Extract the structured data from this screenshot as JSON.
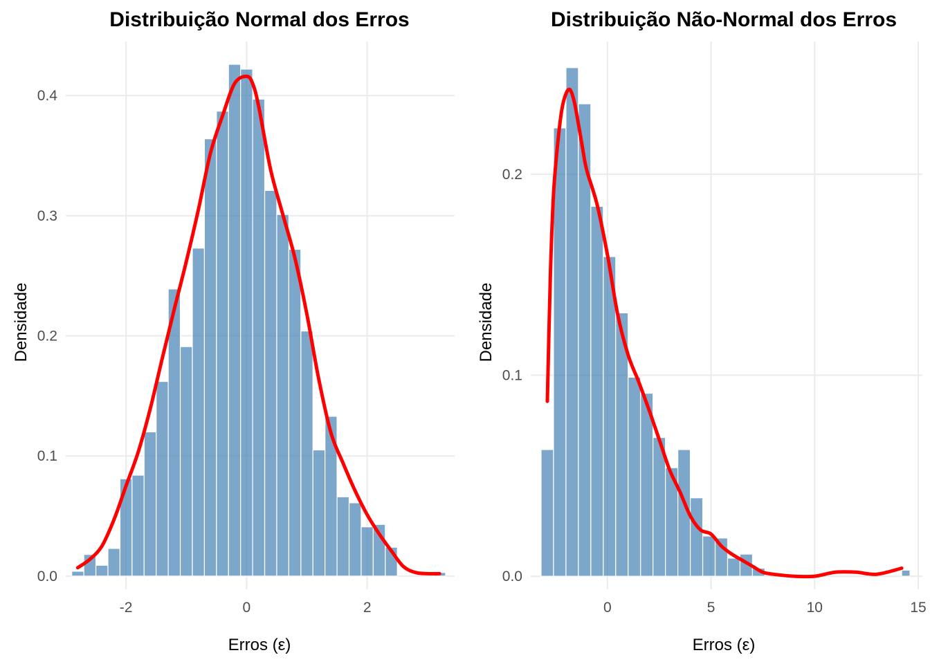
{
  "chart_data": [
    {
      "type": "bar",
      "subtype": "histogram-with-density",
      "title": "Distribuição Normal dos Erros",
      "xlabel": "Erros (ε)",
      "ylabel": "Densidade",
      "xlim": [
        -3.0,
        3.45
      ],
      "ylim": [
        -0.011,
        0.445
      ],
      "xticks": [
        -2,
        0,
        2
      ],
      "xtick_labels": [
        "-2",
        "0",
        "2"
      ],
      "yticks": [
        0.0,
        0.1,
        0.2,
        0.3,
        0.4
      ],
      "ytick_labels": [
        "0.0",
        "0.1",
        "0.2",
        "0.3",
        "0.4"
      ],
      "grid": true,
      "bar_color": "#4682b4",
      "line_color": "#ff0000",
      "bins": [
        {
          "x0": -2.9,
          "x1": -2.7,
          "density": 0.004
        },
        {
          "x0": -2.7,
          "x1": -2.5,
          "density": 0.018
        },
        {
          "x0": -2.5,
          "x1": -2.3,
          "density": 0.009
        },
        {
          "x0": -2.3,
          "x1": -2.1,
          "density": 0.023
        },
        {
          "x0": -2.1,
          "x1": -1.9,
          "density": 0.081
        },
        {
          "x0": -1.9,
          "x1": -1.7,
          "density": 0.084
        },
        {
          "x0": -1.7,
          "x1": -1.5,
          "density": 0.12
        },
        {
          "x0": -1.5,
          "x1": -1.3,
          "density": 0.162
        },
        {
          "x0": -1.3,
          "x1": -1.1,
          "density": 0.239
        },
        {
          "x0": -1.1,
          "x1": -0.9,
          "density": 0.191
        },
        {
          "x0": -0.9,
          "x1": -0.7,
          "density": 0.273
        },
        {
          "x0": -0.7,
          "x1": -0.5,
          "density": 0.364
        },
        {
          "x0": -0.5,
          "x1": -0.3,
          "density": 0.387
        },
        {
          "x0": -0.3,
          "x1": -0.1,
          "density": 0.426
        },
        {
          "x0": -0.1,
          "x1": 0.1,
          "density": 0.422
        },
        {
          "x0": 0.1,
          "x1": 0.3,
          "density": 0.397
        },
        {
          "x0": 0.3,
          "x1": 0.5,
          "density": 0.321
        },
        {
          "x0": 0.5,
          "x1": 0.7,
          "density": 0.301
        },
        {
          "x0": 0.7,
          "x1": 0.9,
          "density": 0.272
        },
        {
          "x0": 0.9,
          "x1": 1.1,
          "density": 0.204
        },
        {
          "x0": 1.1,
          "x1": 1.3,
          "density": 0.105
        },
        {
          "x0": 1.3,
          "x1": 1.5,
          "density": 0.133
        },
        {
          "x0": 1.5,
          "x1": 1.7,
          "density": 0.066
        },
        {
          "x0": 1.7,
          "x1": 1.9,
          "density": 0.061
        },
        {
          "x0": 1.9,
          "x1": 2.1,
          "density": 0.041
        },
        {
          "x0": 2.1,
          "x1": 2.3,
          "density": 0.043
        },
        {
          "x0": 2.3,
          "x1": 2.5,
          "density": 0.024
        },
        {
          "x0": 2.5,
          "x1": 3.1,
          "density": 0.0
        },
        {
          "x0": 3.1,
          "x1": 3.3,
          "density": 0.003
        }
      ],
      "density_curve": {
        "x": [
          -2.8,
          -2.6,
          -2.4,
          -2.2,
          -2.0,
          -1.8,
          -1.6,
          -1.4,
          -1.2,
          -1.0,
          -0.8,
          -0.6,
          -0.4,
          -0.2,
          0.0,
          0.1,
          0.2,
          0.4,
          0.6,
          0.8,
          1.0,
          1.2,
          1.4,
          1.6,
          1.8,
          2.0,
          2.2,
          2.4,
          2.6,
          2.8,
          3.0,
          3.2
        ],
        "y": [
          0.007,
          0.014,
          0.025,
          0.047,
          0.075,
          0.103,
          0.139,
          0.181,
          0.222,
          0.262,
          0.305,
          0.352,
          0.383,
          0.41,
          0.416,
          0.41,
          0.391,
          0.338,
          0.301,
          0.265,
          0.218,
          0.163,
          0.119,
          0.094,
          0.071,
          0.051,
          0.035,
          0.021,
          0.008,
          0.003,
          0.002,
          0.002
        ]
      }
    },
    {
      "type": "bar",
      "subtype": "histogram-with-density",
      "title": "Distribuição Não-Normal dos Erros",
      "xlabel": "Erros (ε)",
      "ylabel": "Densidade",
      "xlim": [
        -3.7,
        15.2
      ],
      "ylim": [
        -0.0065,
        0.266
      ],
      "xticks": [
        0,
        5,
        10,
        15
      ],
      "xtick_labels": [
        "0",
        "5",
        "10",
        "15"
      ],
      "yticks": [
        0.0,
        0.1,
        0.2
      ],
      "ytick_labels": [
        "0.0",
        "0.1",
        "0.2"
      ],
      "grid": true,
      "bar_color": "#4682b4",
      "line_color": "#ff0000",
      "bins": [
        {
          "x0": -3.2,
          "x1": -2.6,
          "density": 0.063
        },
        {
          "x0": -2.6,
          "x1": -2.0,
          "density": 0.223
        },
        {
          "x0": -2.0,
          "x1": -1.4,
          "density": 0.253
        },
        {
          "x0": -1.4,
          "x1": -0.8,
          "density": 0.235
        },
        {
          "x0": -0.8,
          "x1": -0.2,
          "density": 0.184
        },
        {
          "x0": -0.2,
          "x1": 0.4,
          "density": 0.159
        },
        {
          "x0": 0.4,
          "x1": 1.0,
          "density": 0.131
        },
        {
          "x0": 1.0,
          "x1": 1.6,
          "density": 0.099
        },
        {
          "x0": 1.6,
          "x1": 2.2,
          "density": 0.091
        },
        {
          "x0": 2.2,
          "x1": 2.8,
          "density": 0.069
        },
        {
          "x0": 2.8,
          "x1": 3.4,
          "density": 0.054
        },
        {
          "x0": 3.4,
          "x1": 4.0,
          "density": 0.063
        },
        {
          "x0": 4.0,
          "x1": 4.6,
          "density": 0.039
        },
        {
          "x0": 4.6,
          "x1": 5.2,
          "density": 0.02
        },
        {
          "x0": 5.2,
          "x1": 5.8,
          "density": 0.019
        },
        {
          "x0": 5.8,
          "x1": 6.4,
          "density": 0.009
        },
        {
          "x0": 6.4,
          "x1": 7.0,
          "density": 0.011
        },
        {
          "x0": 7.0,
          "x1": 7.6,
          "density": 0.004
        },
        {
          "x0": 7.6,
          "x1": 14.2,
          "density": 0.0
        },
        {
          "x0": 14.2,
          "x1": 14.6,
          "density": 0.003
        }
      ],
      "density_curve": {
        "x": [
          -2.9,
          -2.75,
          -2.6,
          -2.4,
          -2.2,
          -2.0,
          -1.8,
          -1.6,
          -1.4,
          -1.2,
          -1.0,
          -0.5,
          0.0,
          0.5,
          1.0,
          1.5,
          2.0,
          2.5,
          3.0,
          3.5,
          4.0,
          4.5,
          5.0,
          5.5,
          6.0,
          6.5,
          7.0,
          7.5,
          8.0,
          9.0,
          10.0,
          11.0,
          12.0,
          13.0,
          14.2
        ],
        "y": [
          0.087,
          0.15,
          0.19,
          0.215,
          0.232,
          0.24,
          0.242,
          0.236,
          0.225,
          0.213,
          0.202,
          0.185,
          0.16,
          0.13,
          0.11,
          0.097,
          0.083,
          0.068,
          0.053,
          0.042,
          0.03,
          0.023,
          0.021,
          0.015,
          0.011,
          0.008,
          0.005,
          0.002,
          0.001,
          0.0,
          0.0,
          0.002,
          0.002,
          0.001,
          0.004
        ]
      }
    }
  ]
}
